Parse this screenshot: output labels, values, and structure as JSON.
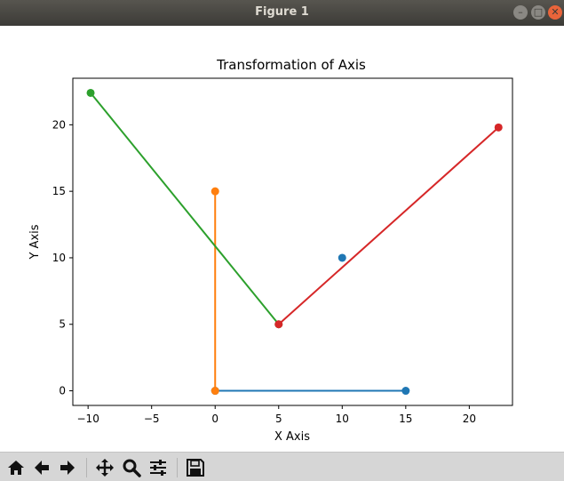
{
  "window": {
    "title": "Figure 1"
  },
  "toolbar": {
    "buttons": [
      {
        "name": "home",
        "icon": "home-icon"
      },
      {
        "name": "back",
        "icon": "back-arrow-icon"
      },
      {
        "name": "forward",
        "icon": "forward-arrow-icon"
      },
      {
        "name": "pan",
        "icon": "move-icon"
      },
      {
        "name": "zoom",
        "icon": "magnifier-icon"
      },
      {
        "name": "subplots",
        "icon": "sliders-icon"
      },
      {
        "name": "save",
        "icon": "floppy-disk-icon"
      }
    ]
  },
  "chart_data": {
    "type": "line",
    "title": "Transformation of Axis",
    "xlabel": "X Axis",
    "ylabel": "Y Axis",
    "xlim": [
      -11.2,
      23.4
    ],
    "ylim": [
      -1.1,
      23.5
    ],
    "xticks": [
      -10,
      -5,
      0,
      5,
      10,
      15,
      20
    ],
    "yticks": [
      0,
      5,
      10,
      15,
      20
    ],
    "xtick_labels": [
      "−10",
      "−5",
      "0",
      "5",
      "10",
      "15",
      "20"
    ],
    "ytick_labels": [
      "0",
      "5",
      "10",
      "15",
      "20"
    ],
    "grid": false,
    "series": [
      {
        "color": "#1f77b4",
        "points": [
          [
            0,
            0
          ],
          [
            15,
            0
          ]
        ]
      },
      {
        "color": "#1f77b4",
        "points": [
          [
            10,
            10
          ]
        ]
      },
      {
        "color": "#ff7f0e",
        "points": [
          [
            0,
            0
          ],
          [
            0,
            15
          ]
        ]
      },
      {
        "color": "#2ca02c",
        "points": [
          [
            5,
            5
          ],
          [
            -9.8,
            22.4
          ]
        ]
      },
      {
        "color": "#d62728",
        "points": [
          [
            5,
            5
          ],
          [
            22.3,
            19.8
          ]
        ]
      }
    ]
  }
}
